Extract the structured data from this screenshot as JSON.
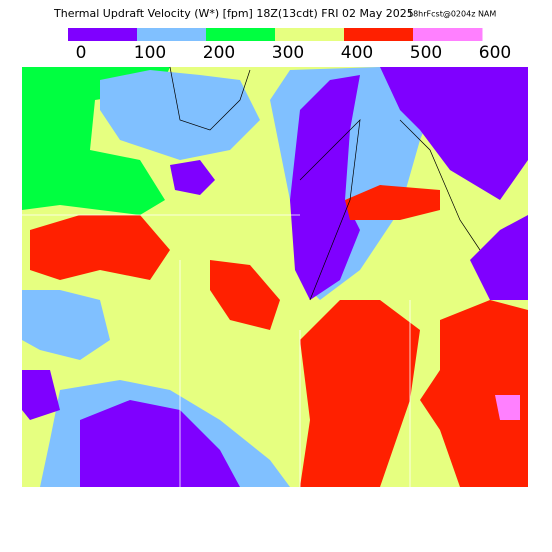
{
  "header": {
    "title": "Thermal Updraft Velocity (W*) [fpm] 18Z(13cdt) FRI 02 May 2025",
    "subtitle": "18hrFcst@0204z NAM"
  },
  "legend": {
    "colors": [
      "#7f00ff",
      "#80c0ff",
      "#00ff40",
      "#e6ff80",
      "#ff2000",
      "#ff80ff"
    ],
    "ticks": [
      0,
      100,
      200,
      300,
      400,
      500,
      600
    ]
  }
}
